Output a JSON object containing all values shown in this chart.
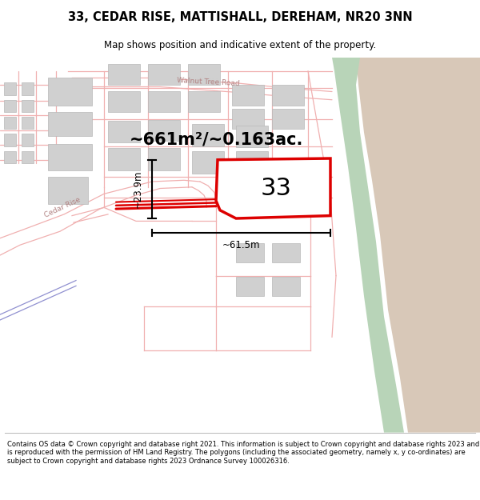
{
  "title": "33, CEDAR RISE, MATTISHALL, DEREHAM, NR20 3NN",
  "subtitle": "Map shows position and indicative extent of the property.",
  "footer": "Contains OS data © Crown copyright and database right 2021. This information is subject to Crown copyright and database rights 2023 and is reproduced with the permission of HM Land Registry. The polygons (including the associated geometry, namely x, y co-ordinates) are subject to Crown copyright and database rights 2023 Ordnance Survey 100026316.",
  "area_text": "~661m²/~0.163ac.",
  "number_label": "33",
  "dim_width": "~61.5m",
  "dim_height": "~23.9m",
  "red_color": "#dd0000",
  "pink_color": "#f0b0b0",
  "light_pink": "#f8d8d8",
  "green_color": "#b8d4b8",
  "tan_color": "#d8c8b8",
  "gray_building": "#d0d0d0",
  "gray_building_edge": "#b8b8b8",
  "road_label_color": "#b08080",
  "street_label_color": "#999999",
  "white": "#ffffff"
}
